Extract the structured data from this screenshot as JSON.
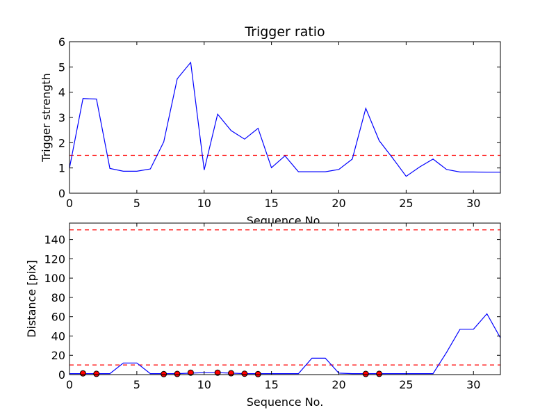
{
  "chart_data": [
    {
      "type": "line",
      "title": "Trigger ratio",
      "xlabel": "Sequence No.",
      "ylabel": "Trigger strength",
      "xlim": [
        0,
        32
      ],
      "ylim": [
        0,
        6
      ],
      "xticks": [
        0,
        5,
        10,
        15,
        20,
        25,
        30
      ],
      "yticks": [
        0,
        1,
        2,
        3,
        4,
        5,
        6
      ],
      "grid": false,
      "line_color": "#0000ff",
      "threshold_color": "#ff0000",
      "series": [
        {
          "x": [
            0,
            1,
            2,
            3,
            4,
            5,
            6,
            7,
            8,
            9,
            10,
            11,
            12,
            13,
            14,
            15,
            16,
            17,
            18,
            19,
            20,
            21,
            22,
            23,
            24,
            25,
            26,
            27,
            28,
            29,
            30,
            31,
            32
          ],
          "values": [
            1.0,
            3.75,
            3.73,
            0.98,
            0.87,
            0.87,
            0.96,
            2.03,
            4.53,
            5.18,
            0.92,
            3.13,
            2.48,
            2.14,
            2.57,
            1.01,
            1.48,
            0.85,
            0.85,
            0.85,
            0.94,
            1.35,
            3.36,
            2.08,
            1.39,
            0.67,
            1.04,
            1.35,
            0.94,
            0.84,
            0.84,
            0.83,
            0.83
          ]
        }
      ],
      "thresholds": [
        1.5
      ]
    },
    {
      "type": "line",
      "title": "",
      "xlabel": "Sequence No.",
      "ylabel": "Distance [pix]",
      "xlim": [
        0,
        32
      ],
      "ylim": [
        0,
        157
      ],
      "xticks": [
        0,
        5,
        10,
        15,
        20,
        25,
        30
      ],
      "yticks": [
        0,
        20,
        40,
        60,
        80,
        100,
        120,
        140
      ],
      "grid": false,
      "line_color": "#0000ff",
      "threshold_color": "#ff0000",
      "marker_color": "#ff0000",
      "series": [
        {
          "x": [
            0,
            1,
            2,
            3,
            4,
            5,
            6,
            7,
            8,
            9,
            10,
            11,
            12,
            13,
            14,
            15,
            16,
            17,
            18,
            19,
            20,
            21,
            22,
            23,
            24,
            25,
            26,
            27,
            28,
            29,
            30,
            31,
            32
          ],
          "values": [
            1,
            1,
            1,
            1,
            12,
            12,
            1,
            1,
            1,
            1.5,
            2,
            2,
            1.5,
            1,
            1,
            1,
            1,
            1,
            17,
            17,
            1.5,
            1,
            1,
            1,
            1,
            1,
            1,
            1,
            23,
            47,
            47,
            63,
            38
          ]
        }
      ],
      "markers": {
        "x": [
          1,
          2,
          7,
          8,
          9,
          11,
          12,
          13,
          14,
          22,
          23
        ],
        "values": [
          1.3,
          0.8,
          0.5,
          0.7,
          2.0,
          2.0,
          1.4,
          0.9,
          0.5,
          0.7,
          0.8
        ]
      },
      "thresholds": [
        10,
        150
      ]
    }
  ]
}
